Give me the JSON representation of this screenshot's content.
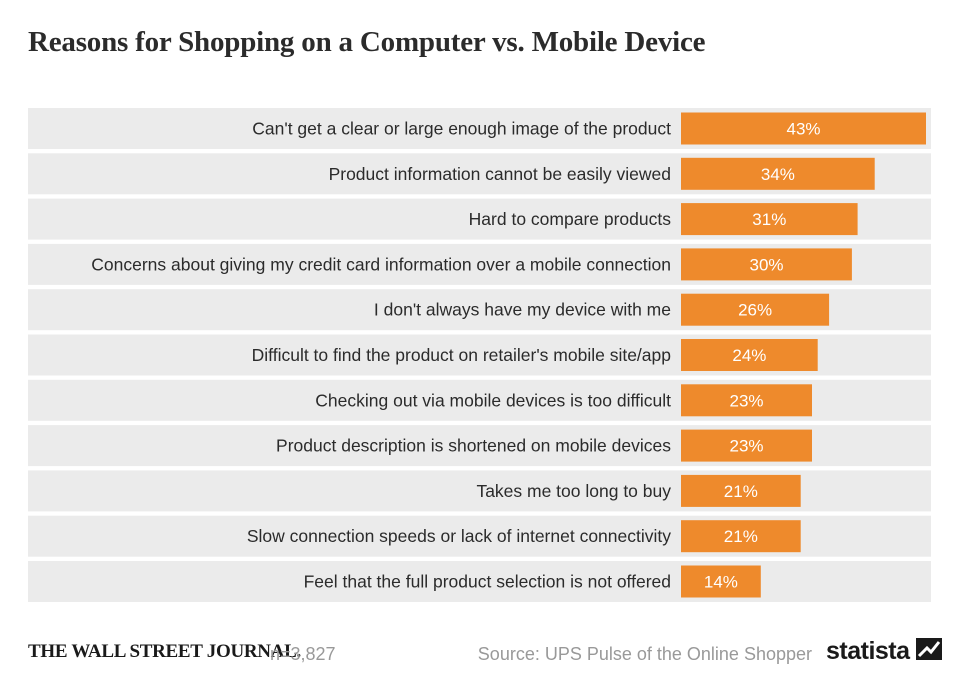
{
  "title": "Reasons for Shopping on a Computer vs. Mobile Device",
  "footer": {
    "publisher": "THE WALL STREET JOURNAL.",
    "sample": "n=3,827",
    "source": "Source: UPS Pulse of the Online Shopper",
    "brand": "statista",
    "brand_icon": "statista-logo-icon"
  },
  "colors": {
    "bar": "#ee8a2c",
    "row_band": "#ebebeb",
    "label_text": "#2b2b2b",
    "value_text": "#ffffff"
  },
  "chart_data": {
    "type": "bar",
    "orientation": "horizontal",
    "title": "Reasons for Shopping on a Computer vs. Mobile Device",
    "categories": [
      "Can't get a clear or large enough image of the product",
      "Product information cannot be easily viewed",
      "Hard to compare products",
      "Concerns about giving my credit card information over a mobile connection",
      "I don't always have my device with me",
      "Difficult to find the product on retailer's mobile site/app",
      "Checking out via mobile devices is too difficult",
      "Product description is shortened on mobile devices",
      "Takes me too long to buy",
      "Slow connection speeds or lack of internet connectivity",
      "Feel that the full product selection is not offered"
    ],
    "values": [
      43,
      34,
      31,
      30,
      26,
      24,
      23,
      23,
      21,
      21,
      14
    ],
    "value_labels": [
      "43%",
      "34%",
      "31%",
      "30%",
      "26%",
      "24%",
      "23%",
      "23%",
      "21%",
      "21%",
      "14%"
    ],
    "unit": "%",
    "xlim": [
      0,
      43
    ],
    "grid": false,
    "legend": "none"
  }
}
